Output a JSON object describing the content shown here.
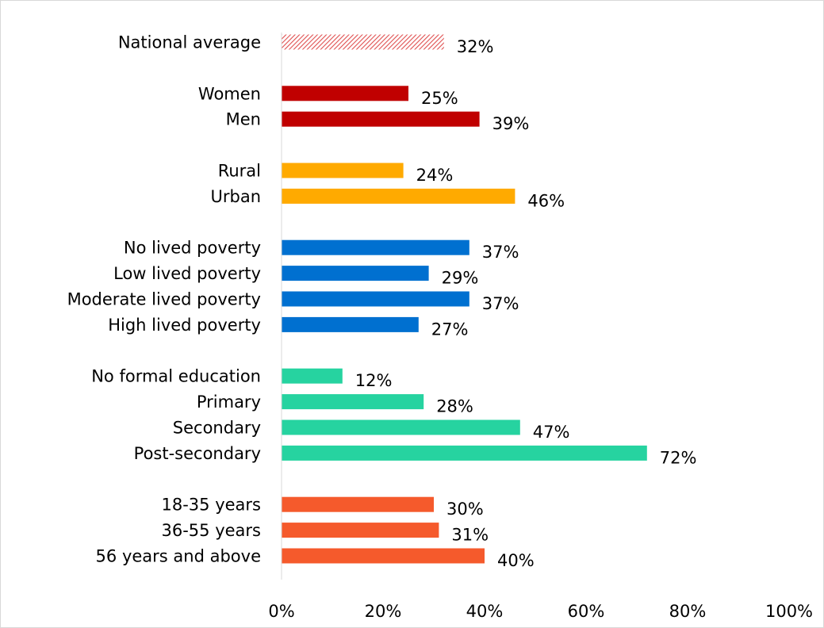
{
  "chart_data": {
    "type": "bar",
    "orientation": "horizontal",
    "title": "",
    "xlabel": "",
    "ylabel": "",
    "xlim": [
      0,
      100
    ],
    "x_tick_labels": [
      "0%",
      "20%",
      "40%",
      "60%",
      "80%",
      "100%"
    ],
    "grid": false,
    "groups": [
      {
        "color": "#e05050",
        "pattern": "diagonal-hatch",
        "categories": [
          "National average"
        ],
        "values": [
          32
        ],
        "labels": [
          "32%"
        ]
      },
      {
        "color": "#c00000",
        "categories": [
          "Women",
          "Men"
        ],
        "values": [
          25,
          39
        ],
        "labels": [
          "25%",
          "39%"
        ]
      },
      {
        "color": "#ffaa00",
        "categories": [
          "Rural",
          "Urban"
        ],
        "values": [
          24,
          46
        ],
        "labels": [
          "24%",
          "46%"
        ]
      },
      {
        "color": "#0070d0",
        "categories": [
          "No lived poverty",
          "Low lived poverty",
          "Moderate lived poverty",
          "High lived poverty"
        ],
        "values": [
          37,
          29,
          37,
          27
        ],
        "labels": [
          "37%",
          "29%",
          "37%",
          "27%"
        ]
      },
      {
        "color": "#26d3a0",
        "categories": [
          "No formal education",
          "Primary",
          "Secondary",
          "Post-secondary"
        ],
        "values": [
          12,
          28,
          47,
          72
        ],
        "labels": [
          "12%",
          "28%",
          "47%",
          "72%"
        ]
      },
      {
        "color": "#f55a2c",
        "categories": [
          "18-35 years",
          "36-55 years",
          "56 years and above"
        ],
        "values": [
          30,
          31,
          40
        ],
        "labels": [
          "30%",
          "31%",
          "40%"
        ]
      }
    ]
  }
}
